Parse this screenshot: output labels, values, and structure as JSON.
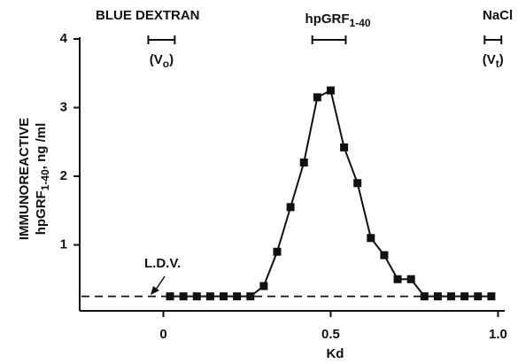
{
  "chart_data": {
    "type": "line",
    "x_label": "Kd",
    "y_label": [
      "IMMUNOREACTIVE",
      {
        "text": "hpGRF",
        "subscript": "1-40",
        "suffix": ", ng /ml"
      }
    ],
    "x": [
      0.02,
      0.06,
      0.1,
      0.14,
      0.18,
      0.22,
      0.26,
      0.3,
      0.34,
      0.38,
      0.42,
      0.46,
      0.5,
      0.54,
      0.58,
      0.62,
      0.66,
      0.7,
      0.74,
      0.78,
      0.82,
      0.86,
      0.9,
      0.94,
      0.98
    ],
    "series": [
      {
        "color": "#111111",
        "values": [
          0.25,
          0.25,
          0.25,
          0.25,
          0.25,
          0.25,
          0.25,
          0.4,
          0.9,
          1.55,
          2.2,
          3.15,
          3.25,
          2.42,
          1.9,
          1.1,
          0.85,
          0.5,
          0.5,
          0.25,
          0.25,
          0.25,
          0.25,
          0.25,
          0.25
        ]
      }
    ],
    "xlim": [
      -0.25,
      1.02
    ],
    "ylim": [
      0,
      4
    ],
    "xticks": [
      0,
      0.5,
      {
        "value": 1,
        "label": "1.0"
      }
    ],
    "yticks": [
      1,
      2,
      3,
      4
    ],
    "ldv": {
      "label": "L.D.V.",
      "value": 0.25
    },
    "markers": [
      {
        "label": {
          "text": "BLUE DEXTRAN"
        },
        "sub_label": {
          "text": "(V",
          "subscript": "o",
          "suffix": ")"
        },
        "range": [
          -0.045,
          0.034
        ]
      },
      {
        "label": {
          "text": "hpGRF",
          "subscript": "1-40"
        },
        "range": [
          0.445,
          0.545
        ]
      },
      {
        "label": {
          "text": "NaCl"
        },
        "sub_label": {
          "text": "(V",
          "subscript": "t",
          "suffix": ")"
        },
        "range": [
          0.96,
          1.01
        ]
      }
    ]
  }
}
